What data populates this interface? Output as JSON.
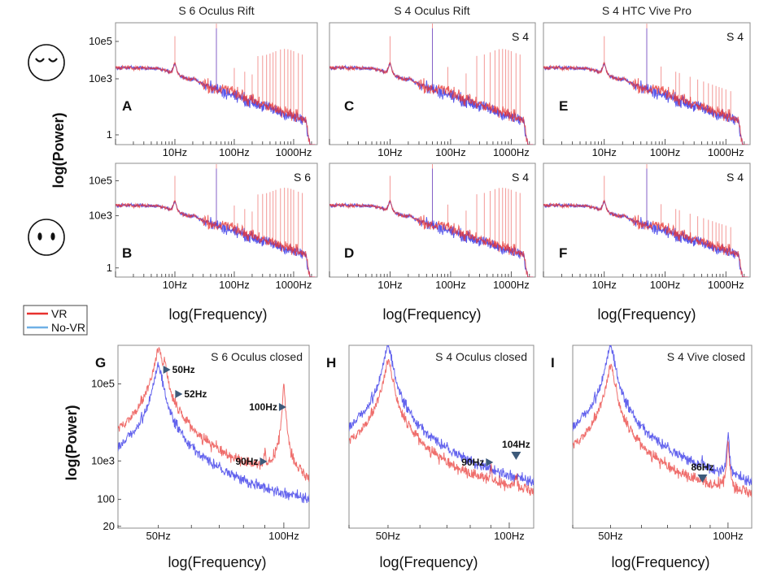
{
  "colors": {
    "vr": "#e8312e",
    "novr": "#3b3be8",
    "novr_legend": "#6fb0e6",
    "annotation": "#3d5a7a"
  },
  "legend": {
    "vr_label": "VR",
    "novr_label": "No-VR"
  },
  "axis_labels": {
    "row_ylabel": "log(Power)",
    "col_xlabels": [
      "log(Frequency)",
      "log(Frequency)",
      "log(Frequency)"
    ],
    "bottom_ylabel": "log(Power)",
    "bottom_xlabels": [
      "log(Frequency)",
      "log(Frequency)",
      "log(Frequency)"
    ]
  },
  "faces": [
    {
      "name": "eyes-closed-face-icon"
    },
    {
      "name": "eyes-open-face-icon"
    }
  ],
  "chart_data": [
    {
      "panel": "A",
      "title": "S 6 Oculus Rift",
      "subject": "",
      "type": "line",
      "xscale": "log",
      "yscale": "log",
      "xlim": [
        1,
        2500
      ],
      "ylim": [
        0.3,
        1000000
      ],
      "yticks": [
        "10e5",
        "10e3",
        "1"
      ],
      "ytick_values": [
        100000,
        1000,
        1
      ],
      "xticks": [
        "10Hz",
        "100Hz",
        "1000Hz"
      ],
      "xtick_values": [
        10,
        100,
        1000
      ],
      "peaks_vr": [
        10,
        50,
        100,
        150,
        200,
        250,
        300,
        350,
        400,
        450,
        500,
        600,
        700,
        800,
        900,
        1000,
        1200,
        1400
      ],
      "peak_main": 50,
      "hf_hump_vr": true,
      "series": [
        "VR",
        "No-VR"
      ]
    },
    {
      "panel": "C",
      "title": "S 4 Oculus Rift",
      "subject": "S 4",
      "type": "line",
      "xscale": "log",
      "yscale": "log",
      "xlim": [
        1,
        2500
      ],
      "ylim": [
        0.3,
        1000000
      ],
      "yticks": [],
      "ytick_values": [],
      "xticks": [
        "10Hz",
        "100Hz",
        "1000Hz"
      ],
      "xtick_values": [
        10,
        100,
        1000
      ],
      "peaks_vr": [
        10,
        50,
        90,
        180,
        270,
        360,
        450,
        540,
        630,
        720,
        810,
        900,
        1000,
        1200,
        1400
      ],
      "peak_main": 50,
      "hf_hump_vr": true,
      "series": [
        "VR",
        "No-VR"
      ]
    },
    {
      "panel": "E",
      "title": "S 4 HTC Vive Pro",
      "subject": "S 4",
      "type": "line",
      "xscale": "log",
      "yscale": "log",
      "xlim": [
        1,
        2500
      ],
      "ylim": [
        0.3,
        1000000
      ],
      "yticks": [],
      "ytick_values": [],
      "xticks": [
        "10Hz",
        "100Hz",
        "1000Hz"
      ],
      "xtick_values": [
        10,
        100,
        1000
      ],
      "peaks_vr": [
        10,
        50,
        86,
        150,
        172,
        258,
        344,
        430,
        516,
        602,
        688,
        774,
        860,
        1000,
        1200
      ],
      "peak_main": 50,
      "hf_hump_vr": false,
      "series": [
        "VR",
        "No-VR"
      ]
    },
    {
      "panel": "B",
      "title": "",
      "subject": "S 6",
      "type": "line",
      "xscale": "log",
      "yscale": "log",
      "xlim": [
        1,
        2500
      ],
      "ylim": [
        0.3,
        1000000
      ],
      "yticks": [
        "10e5",
        "10e3",
        "1"
      ],
      "ytick_values": [
        100000,
        1000,
        1
      ],
      "xticks": [
        "10Hz",
        "100Hz",
        "1000Hz"
      ],
      "xtick_values": [
        10,
        100,
        1000
      ],
      "peaks_vr": [
        10,
        50,
        100,
        150,
        200,
        250,
        300,
        350,
        400,
        450,
        500,
        600,
        700,
        800,
        900,
        1000,
        1200,
        1400
      ],
      "peak_main": 50,
      "hf_hump_vr": true,
      "series": [
        "VR",
        "No-VR"
      ]
    },
    {
      "panel": "D",
      "title": "",
      "subject": "S 4",
      "type": "line",
      "xscale": "log",
      "yscale": "log",
      "xlim": [
        1,
        2500
      ],
      "ylim": [
        0.3,
        1000000
      ],
      "yticks": [],
      "ytick_values": [],
      "xticks": [
        "10Hz",
        "100Hz",
        "1000Hz"
      ],
      "xtick_values": [
        10,
        100,
        1000
      ],
      "peaks_vr": [
        10,
        50,
        90,
        180,
        270,
        360,
        450,
        540,
        630,
        720,
        810,
        900,
        1000,
        1200,
        1400
      ],
      "peak_main": 50,
      "hf_hump_vr": true,
      "series": [
        "VR",
        "No-VR"
      ]
    },
    {
      "panel": "F",
      "title": "",
      "subject": "S 4",
      "type": "line",
      "xscale": "log",
      "yscale": "log",
      "xlim": [
        1,
        2500
      ],
      "ylim": [
        0.3,
        1000000
      ],
      "yticks": [],
      "ytick_values": [],
      "xticks": [
        "10Hz",
        "100Hz",
        "1000Hz"
      ],
      "xtick_values": [
        10,
        100,
        1000
      ],
      "peaks_vr": [
        10,
        50,
        86,
        150,
        172,
        258,
        344,
        430,
        516,
        602,
        688,
        774,
        860,
        1000,
        1200
      ],
      "peak_main": 50,
      "hf_hump_vr": false,
      "series": [
        "VR",
        "No-VR"
      ]
    },
    {
      "panel": "G",
      "title": "S 6 Oculus closed",
      "type": "line",
      "xscale": "log",
      "yscale": "log",
      "xlim": [
        40,
        115
      ],
      "ylim": [
        18,
        1000000
      ],
      "yticks": [
        "10e5",
        "10e3",
        "100",
        "20"
      ],
      "ytick_values": [
        100000,
        1000,
        100,
        20
      ],
      "xticks": [
        "50Hz",
        "100Hz"
      ],
      "xtick_values": [
        50,
        100
      ],
      "vr_peaks": [
        [
          50,
          800000
        ],
        [
          52,
          200000
        ],
        [
          90,
          1000
        ],
        [
          100,
          100000
        ]
      ],
      "novr_peaks": [
        [
          50,
          300000
        ]
      ],
      "annotations": [
        {
          "label": "50Hz",
          "freq": 50
        },
        {
          "label": "52Hz",
          "freq": 52
        },
        {
          "label": "100Hz",
          "freq": 100
        },
        {
          "label": "90Hz",
          "freq": 90
        }
      ],
      "series": [
        "VR",
        "No-VR"
      ]
    },
    {
      "panel": "H",
      "title": "S 4 Oculus closed",
      "type": "line",
      "xscale": "log",
      "yscale": "log",
      "xlim": [
        40,
        115
      ],
      "ylim": [
        18,
        1000000
      ],
      "yticks": [],
      "ytick_values": [],
      "xticks": [
        "50Hz",
        "100Hz"
      ],
      "xtick_values": [
        50,
        100
      ],
      "vr_peaks": [
        [
          50,
          400000
        ],
        [
          90,
          400
        ],
        [
          104,
          300
        ]
      ],
      "novr_peaks": [
        [
          50,
          1000000
        ]
      ],
      "annotations": [
        {
          "label": "104Hz",
          "freq": 104
        },
        {
          "label": "90Hz",
          "freq": 90
        }
      ],
      "series": [
        "VR",
        "No-VR"
      ]
    },
    {
      "panel": "I",
      "title": "S 4 Vive closed",
      "type": "line",
      "xscale": "log",
      "yscale": "log",
      "xlim": [
        40,
        115
      ],
      "ylim": [
        18,
        1000000
      ],
      "yticks": [],
      "ytick_values": [],
      "xticks": [
        "50Hz",
        "100Hz"
      ],
      "xtick_values": [
        50,
        100
      ],
      "vr_peaks": [
        [
          50,
          300000
        ],
        [
          100,
          3000
        ]
      ],
      "novr_peaks": [
        [
          50,
          1000000
        ],
        [
          86,
          220
        ],
        [
          100,
          5000
        ]
      ],
      "annotations": [
        {
          "label": "86Hz",
          "freq": 86
        }
      ],
      "series": [
        "VR",
        "No-VR"
      ]
    }
  ]
}
